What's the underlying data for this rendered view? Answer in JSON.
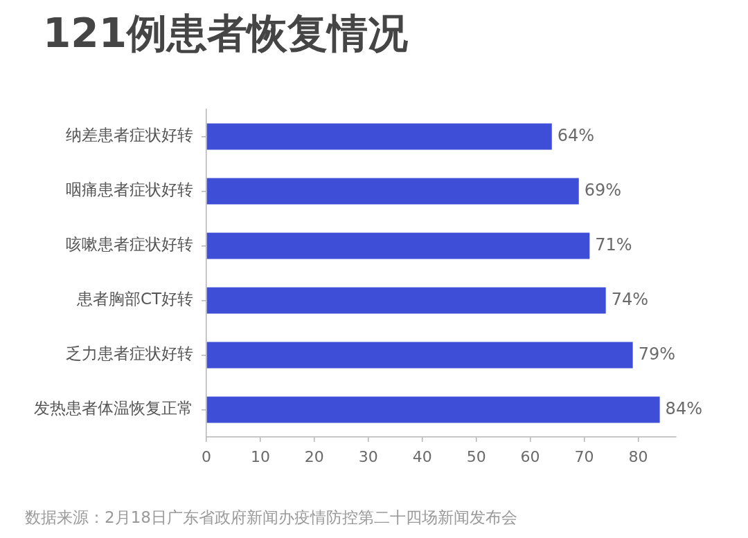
{
  "chart_data": {
    "type": "bar",
    "orientation": "horizontal",
    "title": "121例患者恢复情况",
    "categories": [
      "纳差患者症状好转",
      "咽痛患者症状好转",
      "咳嗽患者症状好转",
      "患者胸部CT好转",
      "乏力患者症状好转",
      "发热患者体温恢复正常"
    ],
    "values": [
      64,
      69,
      71,
      74,
      79,
      84
    ],
    "value_labels": [
      "64%",
      "69%",
      "71%",
      "74%",
      "79%",
      "84%"
    ],
    "color": "#3f4ed6",
    "xlim": [
      0,
      87
    ],
    "xticks": [
      0,
      10,
      20,
      30,
      40,
      50,
      60,
      70,
      80
    ],
    "grid": false,
    "legend": false,
    "annotations": [
      "数据来源：2月18日广东省政府新闻办疫情防控第二十四场新闻发布会"
    ]
  }
}
